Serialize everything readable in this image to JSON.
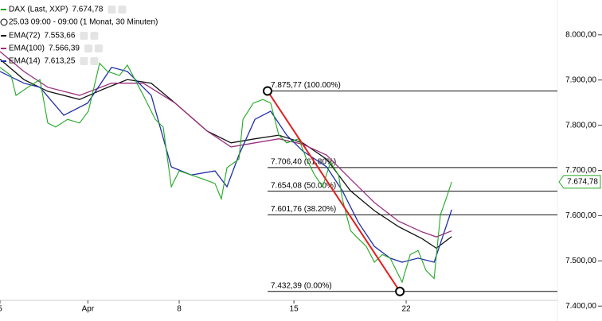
{
  "chart_data": {
    "type": "line",
    "legend_title": "25.03 09:00 - 09:00 (1 Monat, 30 Minuten)",
    "xlim": [
      0,
      24.73
    ],
    "ylim": [
      7367,
      8077
    ],
    "xticks": [
      {
        "value": 0,
        "label": "5"
      },
      {
        "value": 3.9,
        "label": "Apr"
      },
      {
        "value": 7.95,
        "label": "8"
      },
      {
        "value": 13.04,
        "label": "15"
      },
      {
        "value": 18.02,
        "label": "22"
      }
    ],
    "yticks": [
      {
        "value": 7400,
        "label": "7.400,00"
      },
      {
        "value": 7500,
        "label": "7.500,00"
      },
      {
        "value": 7600,
        "label": "7.600,00"
      },
      {
        "value": 7700,
        "label": "7.700,00"
      },
      {
        "value": 7800,
        "label": "7.800,00"
      },
      {
        "value": 7900,
        "label": "7.900,00"
      },
      {
        "value": 8000,
        "label": "8.000,00"
      }
    ],
    "series": [
      {
        "name": "DAX (Last, XXP)",
        "color": "#22a822",
        "last_value": {
          "value": 7674.78,
          "label": "7.674,78"
        },
        "x": [
          0,
          0.49,
          0.71,
          1.24,
          1.77,
          2.12,
          2.47,
          3.0,
          3.53,
          3.92,
          4.42,
          4.77,
          5.3,
          5.65,
          6.36,
          6.89,
          7.24,
          7.6,
          7.95,
          8.48,
          9.01,
          9.54,
          9.82,
          10.07,
          10.6,
          10.78,
          11.24,
          11.66,
          12.01,
          12.37,
          12.72,
          13.25,
          13.6,
          13.96,
          14.31,
          14.66,
          15.02,
          15.19,
          15.55,
          15.9,
          16.25,
          16.61,
          16.96,
          17.31,
          17.67,
          17.84,
          18.2,
          18.55,
          18.9,
          19.26,
          19.54,
          19.79,
          20.04
        ],
        "values": [
          7928,
          7910,
          7866,
          7884,
          7901,
          7805,
          7796,
          7813,
          7805,
          7831,
          7937,
          7919,
          7910,
          7933,
          7866,
          7813,
          7796,
          7664,
          7699,
          7690,
          7681,
          7671,
          7637,
          7706,
          7725,
          7813,
          7849,
          7857,
          7849,
          7778,
          7761,
          7770,
          7725,
          7690,
          7664,
          7718,
          7690,
          7637,
          7567,
          7549,
          7532,
          7497,
          7514,
          7506,
          7470,
          7453,
          7514,
          7523,
          7479,
          7461,
          7602,
          7637,
          7674.78
        ]
      },
      {
        "name": "EMA(72)",
        "color": "#111111",
        "last_value": {
          "value": 7553.66,
          "label": "7.553,66"
        },
        "x": [
          0,
          1.06,
          2.12,
          3.53,
          4.59,
          5.65,
          6.71,
          7.77,
          9.19,
          10.25,
          11.31,
          12.37,
          13.43,
          14.49,
          15.55,
          16.61,
          17.67,
          18.73,
          19.36,
          20.04
        ],
        "values": [
          7946,
          7901,
          7875,
          7857,
          7880,
          7901,
          7893,
          7849,
          7787,
          7761,
          7770,
          7778,
          7761,
          7725,
          7655,
          7611,
          7576,
          7549,
          7528,
          7553.66
        ]
      },
      {
        "name": "EMA(100)",
        "color": "#9b2f7f",
        "last_value": {
          "value": 7566.39,
          "label": "7.566,39"
        },
        "x": [
          0,
          1.06,
          2.12,
          3.53,
          4.95,
          6.36,
          7.77,
          9.19,
          10.25,
          11.31,
          12.37,
          13.43,
          14.49,
          15.55,
          16.61,
          17.67,
          18.73,
          19.36,
          20.04
        ],
        "values": [
          7963,
          7919,
          7884,
          7866,
          7893,
          7893,
          7849,
          7787,
          7752,
          7761,
          7770,
          7758,
          7734,
          7681,
          7629,
          7588,
          7564,
          7553,
          7566.39
        ]
      },
      {
        "name": "EMA(14)",
        "color": "#1f2fa8",
        "last_value": {
          "value": 7613.25,
          "label": "7.613,25"
        },
        "x": [
          0,
          1.06,
          1.77,
          2.83,
          3.89,
          4.95,
          5.65,
          6.71,
          7.6,
          8.48,
          9.54,
          10.07,
          10.6,
          11.31,
          12.01,
          12.72,
          13.43,
          14.49,
          15.19,
          15.9,
          16.61,
          17.31,
          17.84,
          18.55,
          19.26,
          19.61,
          20.04
        ],
        "values": [
          7919,
          7893,
          7884,
          7822,
          7849,
          7928,
          7919,
          7866,
          7708,
          7690,
          7699,
          7664,
          7734,
          7813,
          7831,
          7778,
          7743,
          7708,
          7655,
          7585,
          7532,
          7506,
          7497,
          7506,
          7497,
          7549,
          7613.25
        ]
      }
    ],
    "fibonacci": {
      "start_x": 11.87,
      "end_x": 17.74,
      "color": "#e02020",
      "levels": [
        {
          "value": 7875.77,
          "label": "7.875,77 (100.00%)"
        },
        {
          "value": 7706.4,
          "label": "7.706,40 (61.80%)"
        },
        {
          "value": 7654.08,
          "label": "7.654,08 (50.00%)"
        },
        {
          "value": 7601.76,
          "label": "7.601,76 (38.20%)"
        },
        {
          "value": 7432.39,
          "label": "7.432,39 (0.00%)"
        }
      ]
    }
  }
}
